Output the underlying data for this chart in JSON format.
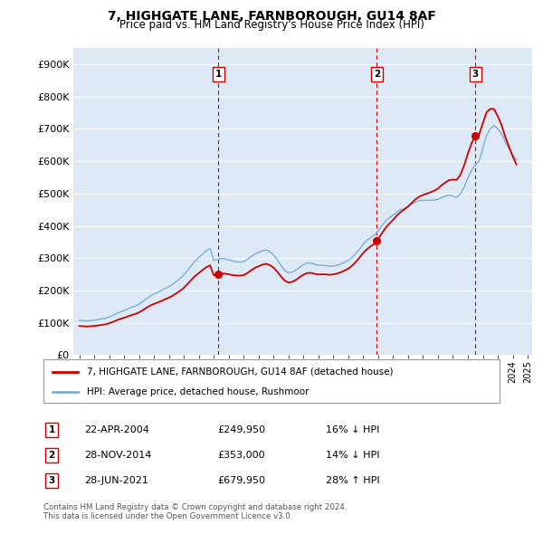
{
  "title_line1": "7, HIGHGATE LANE, FARNBOROUGH, GU14 8AF",
  "title_line2": "Price paid vs. HM Land Registry's House Price Index (HPI)",
  "ylim": [
    0,
    950000
  ],
  "yticks": [
    0,
    100000,
    200000,
    300000,
    400000,
    500000,
    600000,
    700000,
    800000,
    900000
  ],
  "ytick_labels": [
    "£0",
    "£100K",
    "£200K",
    "£300K",
    "£400K",
    "£500K",
    "£600K",
    "£700K",
    "£800K",
    "£900K"
  ],
  "hpi_color": "#7bafd4",
  "price_color": "#cc0000",
  "dashed_color": "#cc0000",
  "plot_bg_color": "#ddeaf5",
  "legend_label_red": "7, HIGHGATE LANE, FARNBOROUGH, GU14 8AF (detached house)",
  "legend_label_blue": "HPI: Average price, detached house, Rushmoor",
  "transactions": [
    {
      "num": 1,
      "date": "22-APR-2004",
      "price": 249950,
      "pct": "16%",
      "dir": "↓",
      "year": 2004.31
    },
    {
      "num": 2,
      "date": "28-NOV-2014",
      "price": 353000,
      "pct": "14%",
      "dir": "↓",
      "year": 2014.91
    },
    {
      "num": 3,
      "date": "28-JUN-2021",
      "price": 679950,
      "pct": "28%",
      "dir": "↑",
      "year": 2021.49
    }
  ],
  "footer_line1": "Contains HM Land Registry data © Crown copyright and database right 2024.",
  "footer_line2": "This data is licensed under the Open Government Licence v3.0.",
  "hpi_data": {
    "years": [
      1995.0,
      1995.25,
      1995.5,
      1995.75,
      1996.0,
      1996.25,
      1996.5,
      1996.75,
      1997.0,
      1997.25,
      1997.5,
      1997.75,
      1998.0,
      1998.25,
      1998.5,
      1998.75,
      1999.0,
      1999.25,
      1999.5,
      1999.75,
      2000.0,
      2000.25,
      2000.5,
      2000.75,
      2001.0,
      2001.25,
      2001.5,
      2001.75,
      2002.0,
      2002.25,
      2002.5,
      2002.75,
      2003.0,
      2003.25,
      2003.5,
      2003.75,
      2004.0,
      2004.25,
      2004.5,
      2004.75,
      2005.0,
      2005.25,
      2005.5,
      2005.75,
      2006.0,
      2006.25,
      2006.5,
      2006.75,
      2007.0,
      2007.25,
      2007.5,
      2007.75,
      2008.0,
      2008.25,
      2008.5,
      2008.75,
      2009.0,
      2009.25,
      2009.5,
      2009.75,
      2010.0,
      2010.25,
      2010.5,
      2010.75,
      2011.0,
      2011.25,
      2011.5,
      2011.75,
      2012.0,
      2012.25,
      2012.5,
      2012.75,
      2013.0,
      2013.25,
      2013.5,
      2013.75,
      2014.0,
      2014.25,
      2014.5,
      2014.75,
      2015.0,
      2015.25,
      2015.5,
      2015.75,
      2016.0,
      2016.25,
      2016.5,
      2016.75,
      2017.0,
      2017.25,
      2017.5,
      2017.75,
      2018.0,
      2018.25,
      2018.5,
      2018.75,
      2019.0,
      2019.25,
      2019.5,
      2019.75,
      2020.0,
      2020.25,
      2020.5,
      2020.75,
      2021.0,
      2021.25,
      2021.5,
      2021.75,
      2022.0,
      2022.25,
      2022.5,
      2022.75,
      2023.0,
      2023.25,
      2023.5,
      2023.75,
      2024.0,
      2024.25
    ],
    "values": [
      108000,
      107000,
      106000,
      107000,
      108000,
      110000,
      112000,
      114000,
      118000,
      123000,
      129000,
      134000,
      138000,
      143000,
      148000,
      152000,
      158000,
      166000,
      175000,
      183000,
      189000,
      194000,
      200000,
      206000,
      212000,
      219000,
      228000,
      237000,
      248000,
      262000,
      277000,
      291000,
      302000,
      313000,
      323000,
      330000,
      293000,
      296000,
      299000,
      298000,
      295000,
      291000,
      289000,
      288000,
      289000,
      296000,
      305000,
      313000,
      318000,
      323000,
      325000,
      320000,
      310000,
      295000,
      277000,
      262000,
      255000,
      257000,
      263000,
      272000,
      280000,
      285000,
      285000,
      281000,
      278000,
      278000,
      277000,
      275000,
      276000,
      278000,
      282000,
      287000,
      293000,
      302000,
      314000,
      328000,
      343000,
      355000,
      364000,
      371000,
      385000,
      401000,
      415000,
      425000,
      433000,
      443000,
      450000,
      454000,
      460000,
      467000,
      474000,
      478000,
      479000,
      479000,
      479000,
      480000,
      482000,
      488000,
      492000,
      495000,
      492000,
      488000,
      498000,
      520000,
      548000,
      572000,
      590000,
      600000,
      640000,
      680000,
      700000,
      710000,
      700000,
      685000,
      660000,
      640000,
      620000,
      605000
    ]
  }
}
